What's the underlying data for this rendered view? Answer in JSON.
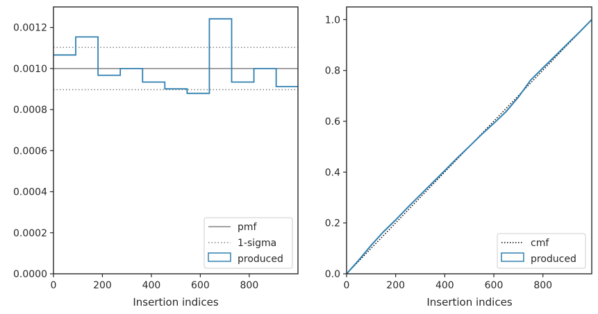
{
  "chart_data": [
    {
      "type": "step",
      "xlabel": "Insertion indices",
      "ylabel": "",
      "xlim": [
        0,
        999
      ],
      "ylim": [
        0,
        0.0013
      ],
      "xticks": [
        0,
        200,
        400,
        600,
        800
      ],
      "xtick_labels": [
        "0",
        "200",
        "400",
        "600",
        "800"
      ],
      "yticks": [
        0,
        0.0002,
        0.0004,
        0.0006,
        0.0008,
        0.001,
        0.0012
      ],
      "ytick_labels": [
        "0.0000",
        "0.0002",
        "0.0004",
        "0.0006",
        "0.0008",
        "0.0010",
        "0.0012"
      ],
      "grid": false,
      "legend_position": "lower-right",
      "legend_entries": [
        "pmf",
        "1-sigma",
        "produced"
      ],
      "pmf": 0.001,
      "sigma_band": [
        0.000897,
        0.001103
      ],
      "series": [
        {
          "name": "produced",
          "bin_edges": [
            0,
            91,
            182,
            273,
            364,
            455,
            546,
            637,
            728,
            819,
            910,
            999
          ],
          "values": [
            0.001066,
            0.001154,
            0.000967,
            0.001,
            0.000934,
            0.000901,
            0.000879,
            0.001242,
            0.000934,
            0.001,
            0.000912
          ]
        }
      ],
      "colors": {
        "produced": "#2f7fb0",
        "pmf": "#808080",
        "sigma": "#808080"
      }
    },
    {
      "type": "line",
      "xlabel": "Insertion indices",
      "ylabel": "",
      "xlim": [
        0,
        999
      ],
      "ylim": [
        0,
        1.05
      ],
      "xticks": [
        0,
        200,
        400,
        600,
        800
      ],
      "xtick_labels": [
        "0",
        "200",
        "400",
        "600",
        "800"
      ],
      "yticks": [
        0,
        0.2,
        0.4,
        0.6,
        0.8,
        1.0
      ],
      "ytick_labels": [
        "0.0",
        "0.2",
        "0.4",
        "0.6",
        "0.8",
        "1.0"
      ],
      "grid": false,
      "legend_position": "lower-right",
      "legend_entries": [
        "cmf",
        "produced"
      ],
      "series": [
        {
          "name": "cmf",
          "x": [
            0,
            999
          ],
          "y": [
            0,
            1.0
          ]
        },
        {
          "name": "produced",
          "x": [
            0,
            50,
            100,
            150,
            200,
            250,
            300,
            350,
            400,
            450,
            500,
            550,
            600,
            650,
            700,
            750,
            800,
            850,
            900,
            950,
            999
          ],
          "y": [
            0,
            0.054,
            0.112,
            0.165,
            0.212,
            0.262,
            0.31,
            0.358,
            0.406,
            0.455,
            0.501,
            0.548,
            0.592,
            0.638,
            0.695,
            0.762,
            0.81,
            0.857,
            0.905,
            0.952,
            1.0
          ]
        }
      ],
      "colors": {
        "produced": "#2f7fb0",
        "cmf": "#000000"
      }
    }
  ]
}
